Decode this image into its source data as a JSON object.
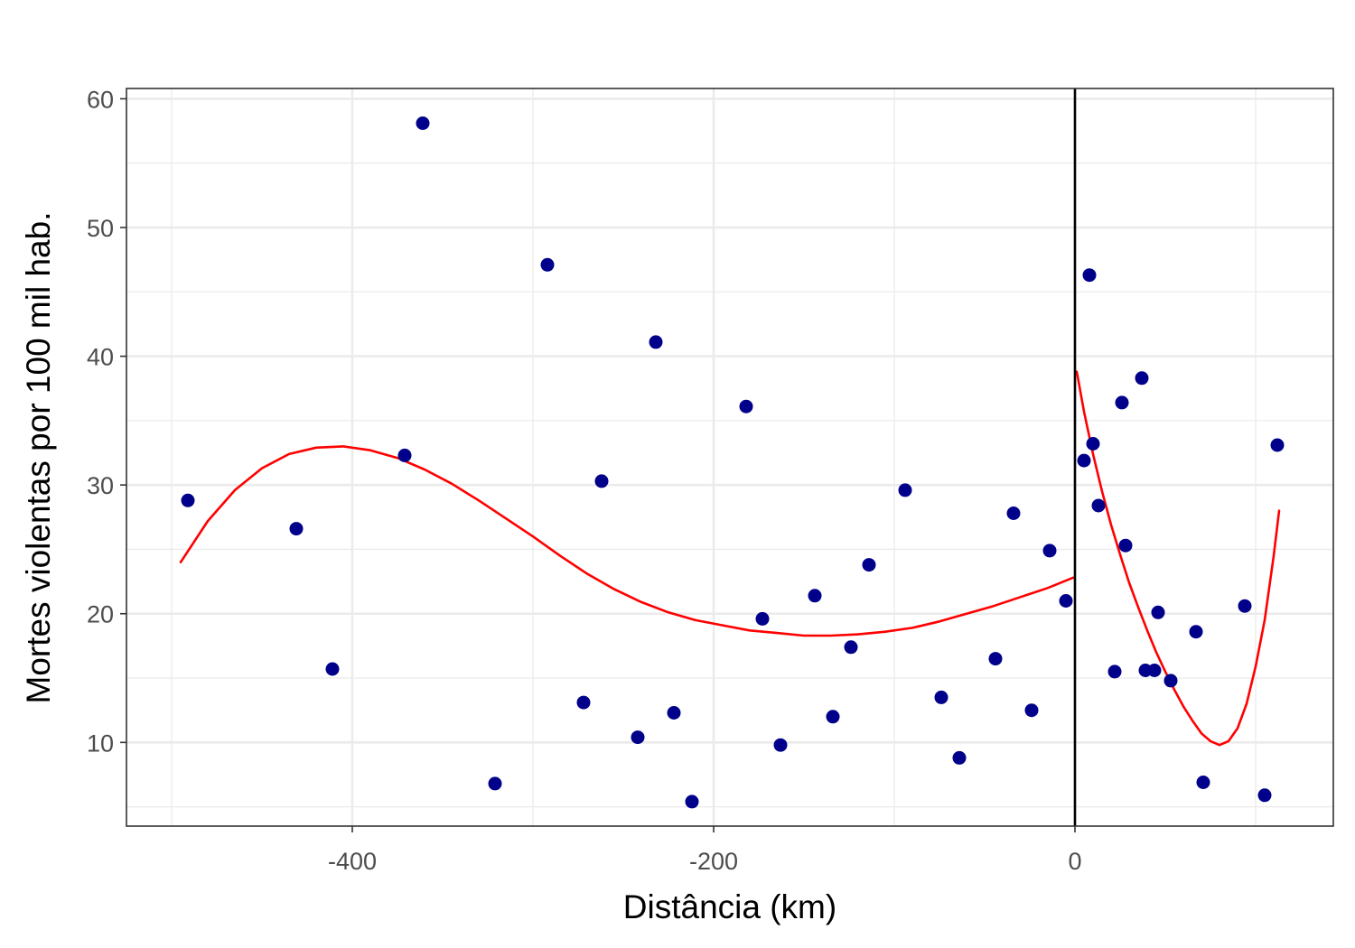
{
  "chart_data": {
    "type": "scatter",
    "xlabel": "Distância (km)",
    "ylabel": "Mortes violentas por 100 mil hab.",
    "xlim": [
      -525,
      143
    ],
    "ylim": [
      3.5,
      60.8
    ],
    "x_ticks": [
      -400,
      -200,
      0
    ],
    "x_tick_labels": [
      "-400",
      "-200",
      "0"
    ],
    "y_ticks": [
      10,
      20,
      30,
      40,
      50,
      60
    ],
    "y_tick_labels": [
      "10",
      "20",
      "30",
      "40",
      "50",
      "60"
    ],
    "grid": true,
    "cutoff_x": 0,
    "point_color": "#00008B",
    "fit_color": "#FF0000",
    "series": [
      {
        "type": "scatter",
        "x": [
          -491,
          -431,
          -411,
          -371,
          -361,
          -321,
          -292,
          -272,
          -262,
          -242,
          -232,
          -222,
          -212,
          -182,
          -173,
          -163,
          -144,
          -134,
          -124,
          -114,
          -94,
          -74,
          -64,
          -44,
          -34,
          -24,
          -14,
          -5,
          5,
          8,
          10,
          13,
          22,
          26,
          28,
          37,
          39,
          44,
          46,
          53,
          67,
          71,
          94,
          105,
          112
        ],
        "y": [
          28.8,
          26.6,
          15.7,
          32.3,
          58.1,
          6.8,
          47.1,
          13.1,
          30.3,
          10.4,
          41.1,
          12.3,
          5.4,
          36.1,
          19.6,
          9.8,
          21.4,
          12.0,
          17.4,
          23.8,
          29.6,
          13.5,
          8.8,
          16.5,
          27.8,
          12.5,
          24.9,
          21.0,
          31.9,
          46.3,
          33.2,
          28.4,
          15.5,
          36.4,
          25.3,
          38.3,
          15.6,
          15.6,
          20.1,
          14.8,
          18.6,
          6.9,
          20.6,
          5.9,
          33.1
        ]
      },
      {
        "type": "line",
        "x": [
          -495,
          -480,
          -465,
          -450,
          -435,
          -420,
          -405,
          -390,
          -375,
          -360,
          -345,
          -330,
          -315,
          -300,
          -285,
          -270,
          -255,
          -240,
          -225,
          -210,
          -195,
          -180,
          -165,
          -150,
          -135,
          -120,
          -105,
          -90,
          -75,
          -60,
          -45,
          -30,
          -15,
          -1
        ],
        "y": [
          24.0,
          27.2,
          29.6,
          31.3,
          32.4,
          32.9,
          33.0,
          32.7,
          32.1,
          31.2,
          30.1,
          28.8,
          27.4,
          26.0,
          24.5,
          23.1,
          21.9,
          20.9,
          20.1,
          19.5,
          19.1,
          18.7,
          18.5,
          18.3,
          18.3,
          18.4,
          18.6,
          18.9,
          19.4,
          20.0,
          20.6,
          21.3,
          22.0,
          22.8
        ]
      },
      {
        "type": "line",
        "x": [
          1,
          5,
          10,
          15,
          20,
          25,
          30,
          35,
          40,
          45,
          50,
          55,
          60,
          65,
          70,
          75,
          80,
          85,
          90,
          95,
          100,
          105,
          110,
          113
        ],
        "y": [
          38.8,
          35.7,
          32.4,
          29.5,
          26.9,
          24.6,
          22.4,
          20.5,
          18.7,
          17.0,
          15.5,
          14.1,
          12.8,
          11.7,
          10.7,
          10.1,
          9.8,
          10.1,
          11.1,
          13.0,
          15.9,
          19.5,
          24.5,
          28.0
        ]
      }
    ]
  }
}
